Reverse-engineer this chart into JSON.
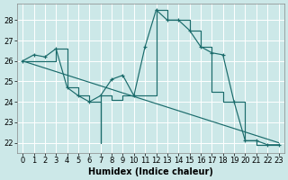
{
  "xlabel": "Humidex (Indice chaleur)",
  "bg_color": "#cce8e8",
  "grid_color": "#ffffff",
  "line_color": "#1a6b6b",
  "xlim": [
    -0.5,
    23.5
  ],
  "ylim": [
    21.5,
    28.8
  ],
  "xticks": [
    0,
    1,
    2,
    3,
    4,
    5,
    6,
    7,
    8,
    9,
    10,
    11,
    12,
    13,
    14,
    15,
    16,
    17,
    18,
    19,
    20,
    21,
    22,
    23
  ],
  "yticks": [
    22,
    23,
    24,
    25,
    26,
    27,
    28
  ],
  "curve1_x": [
    0,
    1,
    2,
    3,
    4,
    5,
    6,
    7,
    8,
    9,
    10,
    11,
    12,
    13,
    14,
    15,
    16,
    17,
    18,
    19,
    20,
    21,
    22,
    23
  ],
  "curve1_y": [
    26.0,
    26.3,
    26.2,
    26.6,
    24.7,
    24.3,
    24.0,
    24.3,
    25.1,
    25.3,
    24.3,
    26.7,
    28.5,
    28.0,
    28.0,
    27.5,
    26.7,
    26.4,
    26.3,
    24.0,
    22.1,
    22.1,
    21.9,
    21.9
  ],
  "curve2_x": [
    0,
    23
  ],
  "curve2_y": [
    26.0,
    22.0
  ],
  "curve3_x": [
    0,
    1,
    2,
    3,
    3,
    4,
    4,
    5,
    5,
    6,
    6,
    7,
    7,
    7,
    7,
    8,
    8,
    9,
    9,
    10,
    10,
    11,
    11,
    12,
    12,
    13,
    13,
    14,
    14,
    15,
    15,
    16,
    16,
    17,
    17,
    18,
    18,
    19,
    19,
    19,
    19,
    20,
    20,
    21,
    21,
    22,
    22,
    23
  ],
  "curve3_y": [
    26.0,
    26.0,
    26.0,
    26.0,
    26.6,
    26.6,
    24.7,
    24.7,
    24.3,
    24.3,
    24.0,
    24.0,
    22.0,
    22.0,
    24.3,
    24.3,
    24.1,
    24.1,
    24.3,
    24.3,
    24.3,
    24.3,
    24.3,
    24.3,
    28.5,
    28.5,
    28.0,
    28.0,
    28.0,
    28.0,
    27.5,
    27.5,
    26.7,
    26.7,
    24.5,
    24.5,
    24.0,
    24.0,
    24.0,
    24.0,
    24.0,
    24.0,
    22.1,
    22.1,
    21.9,
    21.9,
    21.9,
    21.9
  ]
}
